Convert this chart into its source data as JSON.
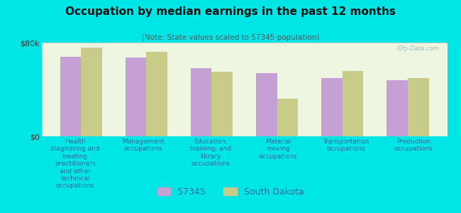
{
  "title": "Occupation by median earnings in the past 12 months",
  "subtitle": "(Note: State values scaled to 57345 population)",
  "categories": [
    "Health\ndiagnosing and\ntreating\npractitioners\nand other\ntechnical\noccupations",
    "Management\noccupations",
    "Education,\ntraining, and\nlibrary\noccupations",
    "Material\nmoving\noccupations",
    "Transportation\noccupations",
    "Production\noccupations"
  ],
  "values_57345": [
    68000,
    67000,
    58000,
    54000,
    50000,
    48000
  ],
  "values_sd": [
    76000,
    72000,
    55000,
    32000,
    56000,
    50000
  ],
  "color_57345": "#c4a0d4",
  "color_sd": "#c8cc88",
  "background_chart": "#eef5e0",
  "background_outer": "#00e5e5",
  "ylim": [
    0,
    80000
  ],
  "ytick_labels": [
    "$0",
    "$80k"
  ],
  "legend_labels": [
    "57345",
    "South Dakota"
  ],
  "watermark": "City-Data.com"
}
